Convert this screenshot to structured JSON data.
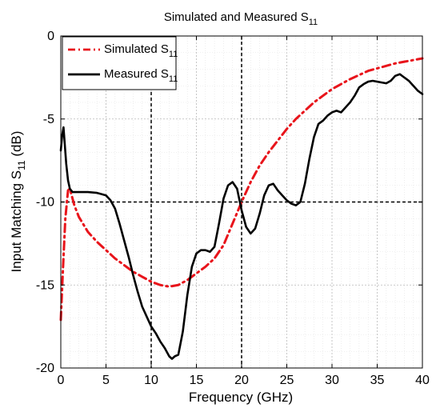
{
  "chart_data": {
    "type": "line",
    "title": "Simulated and Measured S",
    "title_sub": "11",
    "xlabel": "Frequency (GHz)",
    "ylabel": "Input Matching S",
    "ylabel_sub": "11",
    "ylabel_suffix": " (dB)",
    "xlim": [
      0,
      40
    ],
    "ylim": [
      -20,
      0
    ],
    "xticks": [
      0,
      5,
      10,
      15,
      20,
      25,
      30,
      35,
      40
    ],
    "yticks": [
      0,
      -5,
      -10,
      -15,
      -20
    ],
    "grid": true,
    "legend_position": "top-left",
    "reference_lines": {
      "horizontal_y": -10,
      "vertical_x": [
        10,
        20
      ]
    },
    "series": [
      {
        "name": "Simulated S",
        "name_sub": "11",
        "color": "#e8141b",
        "style": "dash-dot",
        "x": [
          0,
          0.2,
          0.5,
          0.8,
          1,
          1.5,
          2,
          3,
          4,
          5,
          6,
          7,
          8,
          9,
          10,
          11,
          12,
          13,
          14,
          15,
          16,
          17,
          18,
          19,
          20,
          21,
          22,
          23,
          24,
          25,
          26,
          27,
          28,
          29,
          30,
          31,
          32,
          33,
          34,
          35,
          36,
          37,
          38,
          39,
          40
        ],
        "y": [
          -17.1,
          -14.5,
          -11.0,
          -9.3,
          -9.2,
          -10.2,
          -10.9,
          -11.8,
          -12.4,
          -12.9,
          -13.4,
          -13.8,
          -14.2,
          -14.5,
          -14.8,
          -15.0,
          -15.1,
          -15.0,
          -14.7,
          -14.3,
          -13.9,
          -13.4,
          -12.6,
          -11.3,
          -10.0,
          -8.8,
          -7.8,
          -7.0,
          -6.3,
          -5.6,
          -5.0,
          -4.5,
          -4.0,
          -3.6,
          -3.2,
          -2.9,
          -2.6,
          -2.35,
          -2.1,
          -1.95,
          -1.8,
          -1.65,
          -1.55,
          -1.45,
          -1.35
        ]
      },
      {
        "name": "Measured S",
        "name_sub": "11",
        "color": "#000000",
        "style": "solid",
        "x": [
          0,
          0.15,
          0.3,
          0.45,
          0.6,
          0.8,
          1.0,
          1.3,
          1.6,
          2,
          3,
          4,
          5,
          5.5,
          6,
          6.5,
          7,
          7.5,
          8,
          8.5,
          9,
          9.5,
          10,
          10.5,
          11,
          11.5,
          12,
          12.3,
          12.6,
          13,
          13.5,
          14,
          14.5,
          15,
          15.5,
          16,
          16.5,
          17,
          17.5,
          18,
          18.5,
          19,
          19.5,
          20,
          20.5,
          21,
          21.5,
          22,
          22.5,
          23,
          23.5,
          24,
          24.5,
          25,
          25.5,
          26,
          26.5,
          27,
          27.5,
          28,
          28.5,
          29,
          29.5,
          30,
          30.5,
          31,
          31.5,
          32,
          32.5,
          33,
          33.5,
          34,
          34.5,
          35,
          35.5,
          36,
          36.5,
          37,
          37.5,
          38,
          38.5,
          39,
          39.5,
          40
        ],
        "y": [
          -6.9,
          -6.0,
          -5.5,
          -6.6,
          -7.7,
          -8.7,
          -9.2,
          -9.4,
          -9.4,
          -9.4,
          -9.4,
          -9.45,
          -9.6,
          -9.9,
          -10.4,
          -11.3,
          -12.3,
          -13.3,
          -14.4,
          -15.4,
          -16.3,
          -16.9,
          -17.5,
          -17.9,
          -18.4,
          -18.8,
          -19.3,
          -19.45,
          -19.3,
          -19.2,
          -17.8,
          -15.6,
          -13.9,
          -13.1,
          -12.9,
          -12.9,
          -13.0,
          -12.7,
          -11.3,
          -9.8,
          -9.0,
          -8.8,
          -9.2,
          -10.5,
          -11.5,
          -11.9,
          -11.6,
          -10.7,
          -9.6,
          -9.0,
          -8.9,
          -9.3,
          -9.6,
          -9.9,
          -10.1,
          -10.2,
          -10.0,
          -8.9,
          -7.4,
          -6.1,
          -5.3,
          -5.1,
          -4.8,
          -4.6,
          -4.5,
          -4.6,
          -4.3,
          -4.0,
          -3.6,
          -3.1,
          -2.9,
          -2.75,
          -2.7,
          -2.75,
          -2.8,
          -2.85,
          -2.7,
          -2.4,
          -2.3,
          -2.5,
          -2.7,
          -3.0,
          -3.3,
          -3.5
        ]
      }
    ]
  }
}
